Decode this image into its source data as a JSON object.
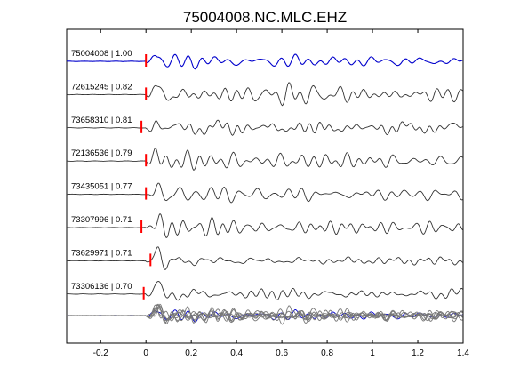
{
  "chart_data": {
    "type": "line",
    "title": "75004008.NC.MLC.EHZ",
    "xlabel": "",
    "ylabel": "",
    "xlim": [
      -0.35,
      1.4
    ],
    "xticks": [
      -0.2,
      0,
      0.2,
      0.4,
      0.6,
      0.8,
      1,
      1.2,
      1.4
    ],
    "xtick_labels": [
      "-0.2",
      "0",
      "0.2",
      "0.4",
      "0.6",
      "0.8",
      "1",
      "1.2",
      "1.4"
    ],
    "grid": false,
    "colors": {
      "reference_trace": "#0000cc",
      "trace": "#333333",
      "stack_trace": "#777777",
      "pick_marker": "#ff0000"
    },
    "traces": [
      {
        "label": "75004008 | 1.00",
        "pick_time": 0.0,
        "reference": true
      },
      {
        "label": "72615245 | 0.82",
        "pick_time": 0.0
      },
      {
        "label": "73658310 | 0.81",
        "pick_time": -0.02
      },
      {
        "label": "72136536 | 0.79",
        "pick_time": 0.0
      },
      {
        "label": "73435051 | 0.77",
        "pick_time": 0.0
      },
      {
        "label": "73307996 | 0.71",
        "pick_time": -0.02
      },
      {
        "label": "73629971 | 0.71",
        "pick_time": 0.02
      },
      {
        "label": "73306136 | 0.70",
        "pick_time": -0.01
      }
    ],
    "stack": {
      "label": "",
      "overlay_count": 8
    }
  }
}
